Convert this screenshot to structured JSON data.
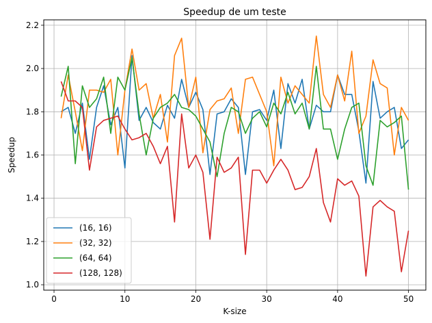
{
  "chart_data": {
    "type": "line",
    "title": "Speedup de um teste",
    "xlabel": "K-size",
    "ylabel": "Speedup",
    "xlim": [
      -1.45,
      52.45
    ],
    "ylim": [
      0.975,
      2.225
    ],
    "x_ticks": [
      0,
      10,
      20,
      30,
      40,
      50
    ],
    "y_ticks": [
      1.0,
      1.2,
      1.4,
      1.6,
      1.8,
      2.0,
      2.2
    ],
    "y_tick_labels": [
      "1.0",
      "1.2",
      "1.4",
      "1.6",
      "1.8",
      "2.0",
      "2.2"
    ],
    "grid": true,
    "legend_position": "lower-left",
    "x": [
      1,
      2,
      3,
      4,
      5,
      6,
      7,
      8,
      9,
      10,
      11,
      12,
      13,
      14,
      15,
      16,
      17,
      18,
      19,
      20,
      21,
      22,
      23,
      24,
      25,
      26,
      27,
      28,
      29,
      30,
      31,
      32,
      33,
      34,
      35,
      36,
      37,
      38,
      39,
      40,
      41,
      42,
      43,
      44,
      45,
      46,
      47,
      48,
      49,
      50
    ],
    "series": [
      {
        "name": "(16, 16)",
        "color": "#1f77b4",
        "values": [
          1.8,
          1.82,
          1.7,
          1.84,
          1.58,
          1.82,
          1.92,
          1.74,
          1.82,
          1.54,
          2.06,
          1.76,
          1.82,
          1.75,
          1.72,
          1.83,
          1.77,
          1.95,
          1.82,
          1.89,
          1.81,
          1.51,
          1.79,
          1.8,
          1.86,
          1.82,
          1.51,
          1.8,
          1.81,
          1.76,
          1.9,
          1.63,
          1.93,
          1.84,
          1.95,
          1.72,
          1.83,
          1.8,
          1.8,
          1.97,
          1.88,
          1.88,
          1.71,
          1.47,
          1.94,
          1.77,
          1.8,
          1.82,
          1.63,
          1.67
        ]
      },
      {
        "name": "(32, 32)",
        "color": "#ff7f0e",
        "values": [
          1.77,
          1.97,
          1.8,
          1.62,
          1.9,
          1.9,
          1.89,
          1.95,
          1.6,
          1.9,
          2.09,
          1.9,
          1.93,
          1.77,
          1.88,
          1.66,
          2.06,
          2.14,
          1.82,
          1.96,
          1.61,
          1.81,
          1.85,
          1.86,
          1.91,
          1.7,
          1.95,
          1.96,
          1.88,
          1.8,
          1.55,
          1.96,
          1.84,
          1.92,
          1.88,
          1.84,
          2.15,
          1.88,
          1.82,
          1.97,
          1.85,
          2.08,
          1.7,
          1.78,
          2.04,
          1.93,
          1.91,
          1.6,
          1.82,
          1.76
        ]
      },
      {
        "name": "(64, 64)",
        "color": "#2ca02c",
        "values": [
          1.87,
          2.01,
          1.56,
          1.92,
          1.82,
          1.86,
          1.96,
          1.7,
          1.96,
          1.9,
          2.05,
          1.79,
          1.6,
          1.77,
          1.82,
          1.84,
          1.88,
          1.82,
          1.81,
          1.78,
          1.72,
          1.66,
          1.5,
          1.7,
          1.82,
          1.8,
          1.7,
          1.77,
          1.8,
          1.73,
          1.84,
          1.79,
          1.89,
          1.79,
          1.84,
          1.72,
          2.01,
          1.72,
          1.72,
          1.58,
          1.72,
          1.82,
          1.84,
          1.55,
          1.46,
          1.76,
          1.73,
          1.75,
          1.78,
          1.44
        ]
      },
      {
        "name": "(128, 128)",
        "color": "#d62728",
        "values": [
          1.94,
          1.85,
          1.85,
          1.82,
          1.53,
          1.73,
          1.76,
          1.77,
          1.78,
          1.72,
          1.67,
          1.68,
          1.7,
          1.64,
          1.56,
          1.64,
          1.29,
          1.79,
          1.54,
          1.6,
          1.52,
          1.21,
          1.59,
          1.52,
          1.54,
          1.59,
          1.14,
          1.53,
          1.53,
          1.47,
          1.53,
          1.58,
          1.53,
          1.44,
          1.45,
          1.5,
          1.63,
          1.38,
          1.29,
          1.49,
          1.46,
          1.48,
          1.41,
          1.04,
          1.36,
          1.39,
          1.36,
          1.34,
          1.06,
          1.25
        ]
      }
    ]
  }
}
